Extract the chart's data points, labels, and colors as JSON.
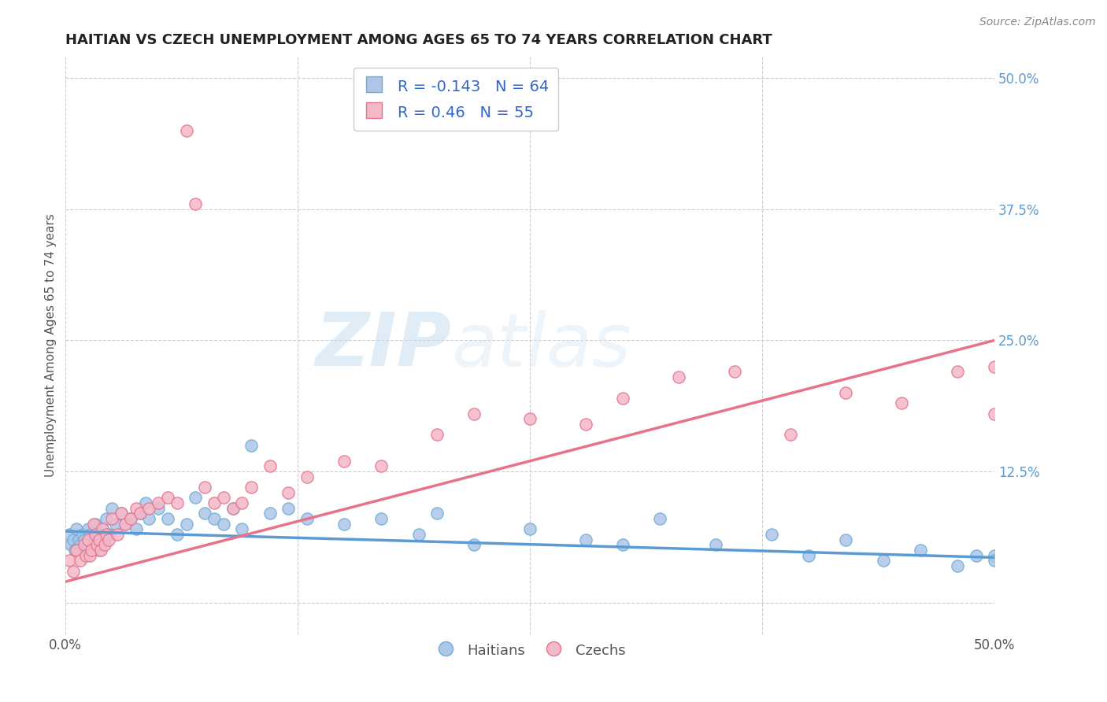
{
  "title": "HAITIAN VS CZECH UNEMPLOYMENT AMONG AGES 65 TO 74 YEARS CORRELATION CHART",
  "source": "Source: ZipAtlas.com",
  "ylabel": "Unemployment Among Ages 65 to 74 years",
  "xlim": [
    0.0,
    0.5
  ],
  "ylim": [
    -0.03,
    0.52
  ],
  "xticks": [
    0.0,
    0.125,
    0.25,
    0.375,
    0.5
  ],
  "xticklabels": [
    "0.0%",
    "",
    "",
    "",
    "50.0%"
  ],
  "ytick_right_labels": [
    "50.0%",
    "37.5%",
    "25.0%",
    "12.5%",
    ""
  ],
  "ytick_right_values": [
    0.5,
    0.375,
    0.25,
    0.125,
    0.0
  ],
  "haitian_color": "#aec6e8",
  "haitian_edge_color": "#6aaed6",
  "czech_color": "#f4b8c8",
  "czech_edge_color": "#e8728a",
  "trend_haitian_color": "#5b9bd5",
  "trend_czech_color": "#e8728a",
  "R_haitian": -0.143,
  "N_haitian": 64,
  "R_czech": 0.46,
  "N_czech": 55,
  "legend_label_haitian": "Haitians",
  "legend_label_czech": "Czechs",
  "watermark_zip": "ZIP",
  "watermark_atlas": "atlas",
  "background_color": "#ffffff",
  "grid_color": "#cccccc",
  "haitian_x": [
    0.002,
    0.003,
    0.004,
    0.005,
    0.006,
    0.007,
    0.008,
    0.009,
    0.01,
    0.011,
    0.012,
    0.013,
    0.014,
    0.015,
    0.016,
    0.017,
    0.018,
    0.019,
    0.02,
    0.021,
    0.022,
    0.023,
    0.025,
    0.027,
    0.03,
    0.032,
    0.035,
    0.038,
    0.04,
    0.043,
    0.045,
    0.05,
    0.055,
    0.06,
    0.065,
    0.07,
    0.075,
    0.08,
    0.085,
    0.09,
    0.095,
    0.1,
    0.11,
    0.12,
    0.13,
    0.15,
    0.17,
    0.19,
    0.2,
    0.22,
    0.25,
    0.28,
    0.3,
    0.32,
    0.35,
    0.38,
    0.4,
    0.42,
    0.44,
    0.46,
    0.48,
    0.49,
    0.5,
    0.5
  ],
  "haitian_y": [
    0.065,
    0.055,
    0.06,
    0.05,
    0.07,
    0.06,
    0.055,
    0.065,
    0.06,
    0.05,
    0.07,
    0.065,
    0.055,
    0.06,
    0.075,
    0.065,
    0.05,
    0.055,
    0.07,
    0.06,
    0.08,
    0.065,
    0.09,
    0.075,
    0.085,
    0.075,
    0.08,
    0.07,
    0.085,
    0.095,
    0.08,
    0.09,
    0.08,
    0.065,
    0.075,
    0.1,
    0.085,
    0.08,
    0.075,
    0.09,
    0.07,
    0.15,
    0.085,
    0.09,
    0.08,
    0.075,
    0.08,
    0.065,
    0.085,
    0.055,
    0.07,
    0.06,
    0.055,
    0.08,
    0.055,
    0.065,
    0.045,
    0.06,
    0.04,
    0.05,
    0.035,
    0.045,
    0.045,
    0.04
  ],
  "czech_x": [
    0.002,
    0.004,
    0.006,
    0.008,
    0.01,
    0.011,
    0.012,
    0.013,
    0.014,
    0.015,
    0.016,
    0.017,
    0.018,
    0.019,
    0.02,
    0.021,
    0.022,
    0.023,
    0.025,
    0.028,
    0.03,
    0.032,
    0.035,
    0.038,
    0.04,
    0.045,
    0.05,
    0.055,
    0.06,
    0.065,
    0.07,
    0.075,
    0.08,
    0.085,
    0.09,
    0.095,
    0.1,
    0.11,
    0.12,
    0.13,
    0.15,
    0.17,
    0.2,
    0.22,
    0.25,
    0.28,
    0.3,
    0.33,
    0.36,
    0.39,
    0.42,
    0.45,
    0.48,
    0.5,
    0.5
  ],
  "czech_y": [
    0.04,
    0.03,
    0.05,
    0.04,
    0.055,
    0.045,
    0.06,
    0.045,
    0.05,
    0.075,
    0.065,
    0.055,
    0.06,
    0.05,
    0.07,
    0.055,
    0.065,
    0.06,
    0.08,
    0.065,
    0.085,
    0.075,
    0.08,
    0.09,
    0.085,
    0.09,
    0.095,
    0.1,
    0.095,
    0.45,
    0.38,
    0.11,
    0.095,
    0.1,
    0.09,
    0.095,
    0.11,
    0.13,
    0.105,
    0.12,
    0.135,
    0.13,
    0.16,
    0.18,
    0.175,
    0.17,
    0.195,
    0.215,
    0.22,
    0.16,
    0.2,
    0.19,
    0.22,
    0.225,
    0.18
  ],
  "haitian_trend_x0": 0.0,
  "haitian_trend_y0": 0.068,
  "haitian_trend_x1": 0.5,
  "haitian_trend_y1": 0.043,
  "czech_trend_x0": 0.0,
  "czech_trend_y0": 0.02,
  "czech_trend_x1": 0.5,
  "czech_trend_y1": 0.25
}
